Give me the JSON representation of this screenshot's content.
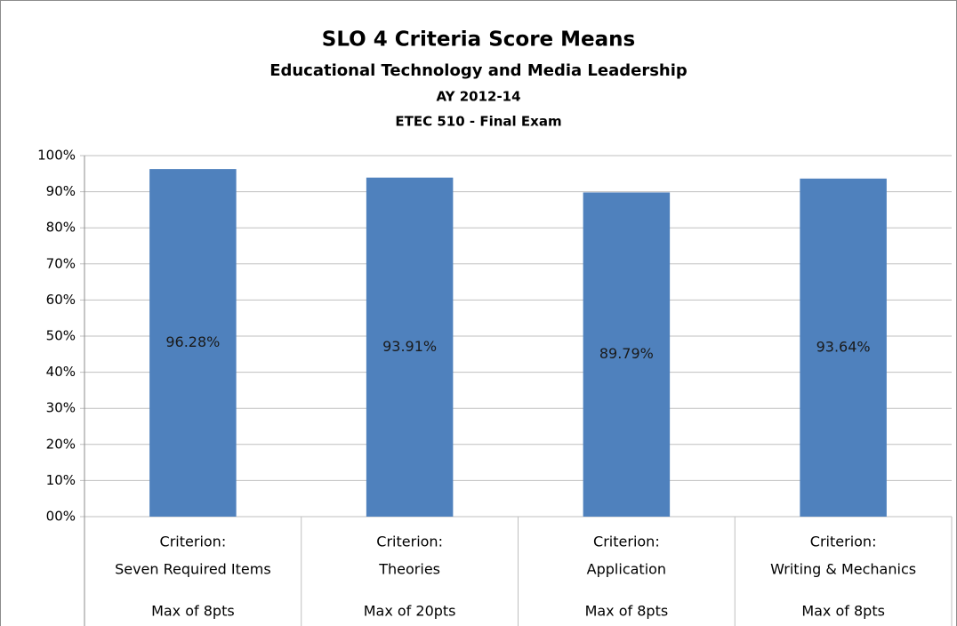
{
  "chart_data": {
    "type": "bar",
    "title": "SLO 4 Criteria Score Means",
    "subtitle": [
      "Educational Technology and Media Leadership",
      "AY 2012-14",
      "ETEC 510 - Final Exam"
    ],
    "categories": [
      [
        "Criterion:",
        "Seven Required Items"
      ],
      [
        "Criterion:",
        "Theories"
      ],
      [
        "Criterion:",
        "Application"
      ],
      [
        "Criterion:",
        "Writing & Mechanics"
      ]
    ],
    "category_notes": [
      "Max of 8pts",
      "Max of 20pts",
      "Max of 8pts",
      "Max of 8pts"
    ],
    "values": [
      96.28,
      93.91,
      89.79,
      93.64
    ],
    "value_labels": [
      "96.28%",
      "93.91%",
      "89.79%",
      "93.64%"
    ],
    "color": "#4f81bd",
    "ylim": [
      0,
      100
    ],
    "yticks": [
      {
        "value": 0,
        "label": "00%"
      },
      {
        "value": 10,
        "label": "10%"
      },
      {
        "value": 20,
        "label": "20%"
      },
      {
        "value": 30,
        "label": "30%"
      },
      {
        "value": 40,
        "label": "40%"
      },
      {
        "value": 50,
        "label": "50%"
      },
      {
        "value": 60,
        "label": "60%"
      },
      {
        "value": 70,
        "label": "70%"
      },
      {
        "value": 80,
        "label": "80%"
      },
      {
        "value": 90,
        "label": "90%"
      },
      {
        "value": 100,
        "label": "100%"
      }
    ],
    "grid": true
  }
}
